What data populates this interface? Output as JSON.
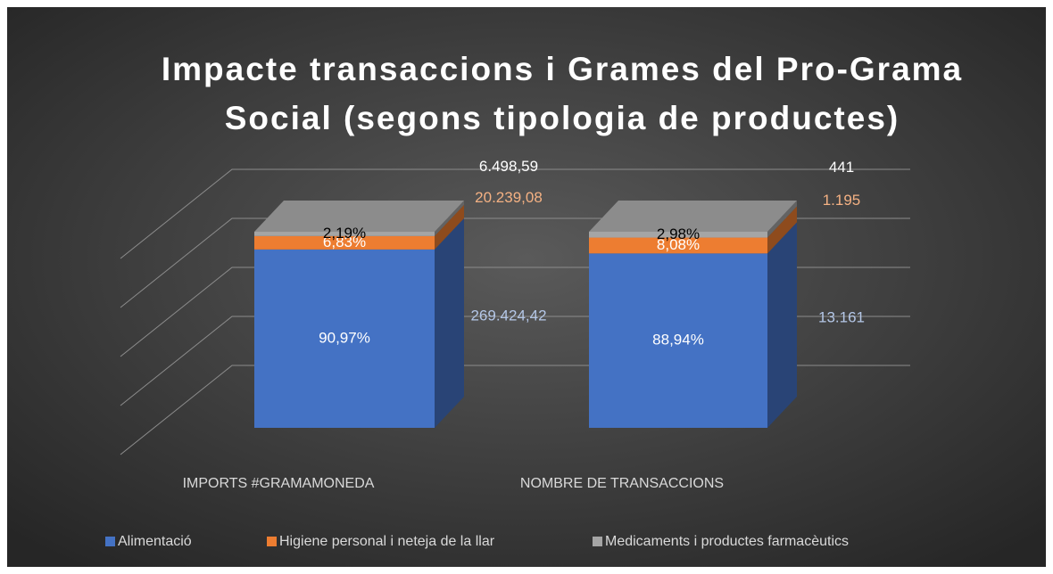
{
  "chart_data": {
    "type": "bar",
    "stacked": true,
    "title": "Impacte transaccions i Grames del Pro-Grama Social (segons tipologia de productes)",
    "categories": [
      "IMPORTS #GRAMAMONEDA",
      "NOMBRE DE TRANSACCIONS"
    ],
    "series": [
      {
        "name": "Alimentació",
        "color": "#4472c4",
        "values": [
          90.97,
          88.94
        ],
        "value_labels": [
          "90,97%",
          "88,94%"
        ],
        "amounts": [
          269424.42,
          13161
        ],
        "amount_labels": [
          "269.424,42",
          "13.161"
        ],
        "amount_color": "#b4c7e7",
        "label_color": "#ffffff"
      },
      {
        "name": "Higiene personal i neteja de la llar",
        "color": "#ed7d31",
        "values": [
          6.83,
          8.08
        ],
        "value_labels": [
          "6,83%",
          "8,08%"
        ],
        "amounts": [
          20239.08,
          1195
        ],
        "amount_labels": [
          "20.239,08",
          "1.195"
        ],
        "amount_color": "#f4b183",
        "label_color": "#ffffff"
      },
      {
        "name": "Medicaments i productes farmacèutics",
        "color": "#a5a5a5",
        "values": [
          2.19,
          2.98
        ],
        "value_labels": [
          "2,19%",
          "2,98%"
        ],
        "amounts": [
          6498.59,
          441
        ],
        "amount_labels": [
          "6.498,59",
          "441"
        ],
        "amount_color": "#ffffff",
        "label_color": "#000000"
      }
    ],
    "ylim": [
      0,
      100
    ],
    "yticks": [
      0,
      25,
      50,
      75,
      100
    ],
    "grid": true,
    "legend": "bottom"
  }
}
